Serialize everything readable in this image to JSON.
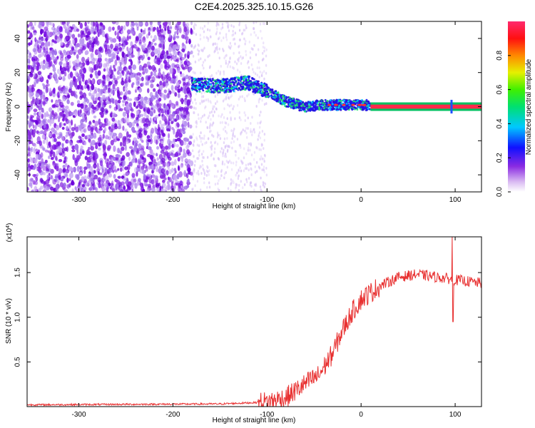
{
  "title": "C2E4.2025.325.10.15.G26",
  "chart_data": [
    {
      "type": "heatmap",
      "xlabel": "Height of straight line (km)",
      "ylabel": "Frequency (Hz)",
      "xlim": [
        -355,
        128
      ],
      "ylim": [
        -50,
        50
      ],
      "x_ticks": [
        -300,
        -200,
        -100,
        0,
        100
      ],
      "y_ticks": [
        40,
        20,
        0,
        -20,
        -40
      ],
      "x_tick_labels": [
        "-300",
        "-200",
        "-100",
        "0",
        "100"
      ],
      "y_tick_labels": [
        "40",
        "20",
        "0",
        "-20",
        "-40"
      ],
      "colorbar": {
        "label": "Normalized spectral amplitude",
        "range": [
          0,
          1
        ],
        "ticks": [
          0.0,
          0.2,
          0.4,
          0.6,
          0.8
        ],
        "tick_labels": [
          "0.0",
          "0.2",
          "0.4",
          "0.6",
          "0.8"
        ]
      },
      "trace_center": [
        [
          -180,
          13
        ],
        [
          -150,
          12
        ],
        [
          -120,
          14
        ],
        [
          -100,
          9
        ],
        [
          -80,
          3
        ],
        [
          -60,
          0
        ],
        [
          -40,
          1
        ],
        [
          -20,
          1
        ],
        [
          0,
          1
        ],
        [
          50,
          0
        ],
        [
          128,
          0
        ]
      ],
      "noise_region": [
        -355,
        -180
      ],
      "stable_line_start": 10
    },
    {
      "type": "line",
      "xlabel": "Height of straight line (km)",
      "ylabel": "SNR (10 * v/v)",
      "multiplier_label": "(x10",
      "multiplier_exponent": "4",
      "multiplier_close": ")",
      "xlim": [
        -355,
        128
      ],
      "ylim": [
        0,
        1.9
      ],
      "x_ticks": [
        -300,
        -200,
        -100,
        0,
        100
      ],
      "y_ticks": [
        0.5,
        1.0,
        1.5
      ],
      "x_tick_labels": [
        "-300",
        "-200",
        "-100",
        "0",
        "100"
      ],
      "y_tick_labels": [
        "0.5",
        "1.0",
        "1.5"
      ],
      "line_color": "#e83030",
      "trend": [
        [
          -355,
          0.02
        ],
        [
          -150,
          0.03
        ],
        [
          -100,
          0.05
        ],
        [
          -80,
          0.1
        ],
        [
          -60,
          0.25
        ],
        [
          -45,
          0.35
        ],
        [
          -30,
          0.6
        ],
        [
          -20,
          0.85
        ],
        [
          -10,
          1.05
        ],
        [
          0,
          1.2
        ],
        [
          20,
          1.35
        ],
        [
          40,
          1.45
        ],
        [
          60,
          1.48
        ],
        [
          80,
          1.45
        ],
        [
          100,
          1.42
        ],
        [
          128,
          1.38
        ]
      ],
      "spike": [
        97,
        1.9
      ],
      "dip": [
        97,
        0.95
      ]
    }
  ]
}
